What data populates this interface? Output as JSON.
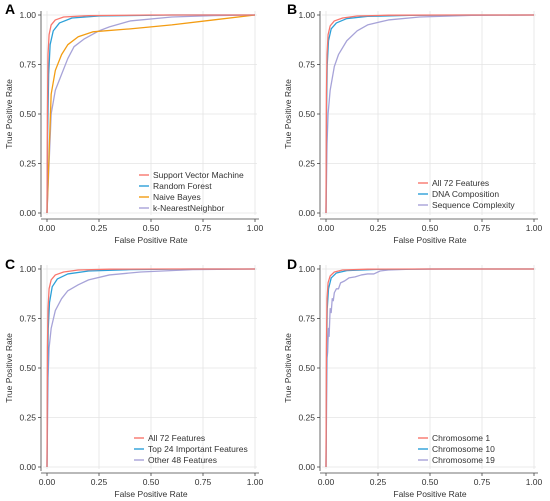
{
  "colors": {
    "red": "#f8766d",
    "blue": "#2ca0d8",
    "orange": "#f39c12",
    "purple": "#a7a3d8",
    "grid": "#e5e5e5",
    "axis": "#444444",
    "text": "#333333"
  },
  "chart_data": [
    {
      "panel_label": "A",
      "type": "line",
      "xlabel": "False Positive Rate",
      "ylabel": "True Positive Rate",
      "xlim": [
        0,
        1
      ],
      "ylim": [
        0,
        1
      ],
      "xticks": [
        "0.00",
        "0.25",
        "0.50",
        "0.75",
        "1.00"
      ],
      "yticks": [
        "0.00",
        "0.25",
        "0.50",
        "0.75",
        "1.00"
      ],
      "grid": true,
      "legend_position": "bottom-right",
      "series": [
        {
          "name": "Support Vector Machine",
          "color": "red",
          "points": [
            [
              0,
              0
            ],
            [
              0.002,
              0.5
            ],
            [
              0.005,
              0.8
            ],
            [
              0.01,
              0.9
            ],
            [
              0.02,
              0.95
            ],
            [
              0.04,
              0.975
            ],
            [
              0.08,
              0.99
            ],
            [
              0.2,
              0.997
            ],
            [
              0.5,
              1
            ],
            [
              1,
              1
            ]
          ]
        },
        {
          "name": "Random Forest",
          "color": "blue",
          "points": [
            [
              0,
              0
            ],
            [
              0.003,
              0.4
            ],
            [
              0.008,
              0.7
            ],
            [
              0.015,
              0.85
            ],
            [
              0.03,
              0.92
            ],
            [
              0.06,
              0.96
            ],
            [
              0.12,
              0.985
            ],
            [
              0.25,
              0.995
            ],
            [
              0.6,
              1
            ],
            [
              1,
              1
            ]
          ]
        },
        {
          "name": "Naive Bayes",
          "color": "orange",
          "points": [
            [
              0,
              0
            ],
            [
              0.02,
              0.6
            ],
            [
              0.04,
              0.72
            ],
            [
              0.07,
              0.8
            ],
            [
              0.1,
              0.85
            ],
            [
              0.15,
              0.89
            ],
            [
              0.22,
              0.915
            ],
            [
              0.4,
              0.93
            ],
            [
              0.6,
              0.95
            ],
            [
              0.8,
              0.975
            ],
            [
              1,
              1
            ]
          ]
        },
        {
          "name": "k-NearestNeighbor",
          "color": "purple",
          "points": [
            [
              0,
              0
            ],
            [
              0.02,
              0.5
            ],
            [
              0.04,
              0.62
            ],
            [
              0.07,
              0.7
            ],
            [
              0.1,
              0.78
            ],
            [
              0.13,
              0.84
            ],
            [
              0.18,
              0.88
            ],
            [
              0.25,
              0.92
            ],
            [
              0.3,
              0.94
            ],
            [
              0.4,
              0.97
            ],
            [
              0.6,
              0.99
            ],
            [
              0.8,
              0.997
            ],
            [
              1,
              1
            ]
          ]
        }
      ]
    },
    {
      "panel_label": "B",
      "type": "line",
      "xlabel": "False Positive Rate",
      "ylabel": "True Positive Rate",
      "xlim": [
        0,
        1
      ],
      "ylim": [
        0,
        1
      ],
      "xticks": [
        "0.00",
        "0.25",
        "0.50",
        "0.75",
        "1.00"
      ],
      "yticks": [
        "0.00",
        "0.25",
        "0.50",
        "0.75",
        "1.00"
      ],
      "grid": true,
      "legend_position": "bottom-right",
      "series": [
        {
          "name": "All 72 Features",
          "color": "red",
          "points": [
            [
              0,
              0
            ],
            [
              0.002,
              0.6
            ],
            [
              0.005,
              0.8
            ],
            [
              0.01,
              0.9
            ],
            [
              0.02,
              0.945
            ],
            [
              0.04,
              0.97
            ],
            [
              0.08,
              0.985
            ],
            [
              0.15,
              0.995
            ],
            [
              0.3,
              0.999
            ],
            [
              0.6,
              1
            ],
            [
              1,
              1
            ]
          ]
        },
        {
          "name": "DNA Composition",
          "color": "blue",
          "points": [
            [
              0,
              0
            ],
            [
              0.003,
              0.55
            ],
            [
              0.006,
              0.75
            ],
            [
              0.012,
              0.87
            ],
            [
              0.025,
              0.93
            ],
            [
              0.05,
              0.96
            ],
            [
              0.1,
              0.982
            ],
            [
              0.2,
              0.993
            ],
            [
              0.4,
              0.998
            ],
            [
              0.7,
              1
            ],
            [
              1,
              1
            ]
          ]
        },
        {
          "name": "Sequence Complexity",
          "color": "purple",
          "points": [
            [
              0,
              0
            ],
            [
              0.005,
              0.35
            ],
            [
              0.01,
              0.5
            ],
            [
              0.02,
              0.62
            ],
            [
              0.04,
              0.74
            ],
            [
              0.06,
              0.8
            ],
            [
              0.1,
              0.87
            ],
            [
              0.15,
              0.92
            ],
            [
              0.2,
              0.95
            ],
            [
              0.3,
              0.975
            ],
            [
              0.45,
              0.99
            ],
            [
              0.7,
              0.998
            ],
            [
              1,
              1
            ]
          ]
        }
      ]
    },
    {
      "panel_label": "C",
      "type": "line",
      "xlabel": "False Positive Rate",
      "ylabel": "True Positive Rate",
      "xlim": [
        0,
        1
      ],
      "ylim": [
        0,
        1
      ],
      "xticks": [
        "0.00",
        "0.25",
        "0.50",
        "0.75",
        "1.00"
      ],
      "yticks": [
        "0.00",
        "0.25",
        "0.50",
        "0.75",
        "1.00"
      ],
      "grid": true,
      "legend_position": "bottom-right",
      "series": [
        {
          "name": "All 72 Features",
          "color": "red",
          "points": [
            [
              0,
              0
            ],
            [
              0.002,
              0.6
            ],
            [
              0.005,
              0.8
            ],
            [
              0.01,
              0.9
            ],
            [
              0.02,
              0.945
            ],
            [
              0.04,
              0.97
            ],
            [
              0.08,
              0.985
            ],
            [
              0.15,
              0.995
            ],
            [
              0.3,
              0.999
            ],
            [
              0.6,
              1
            ],
            [
              1,
              1
            ]
          ]
        },
        {
          "name": "Top 24 Important Features",
          "color": "blue",
          "points": [
            [
              0,
              0
            ],
            [
              0.003,
              0.5
            ],
            [
              0.006,
              0.7
            ],
            [
              0.012,
              0.83
            ],
            [
              0.025,
              0.91
            ],
            [
              0.05,
              0.95
            ],
            [
              0.1,
              0.975
            ],
            [
              0.2,
              0.99
            ],
            [
              0.4,
              0.997
            ],
            [
              0.7,
              1
            ],
            [
              1,
              1
            ]
          ]
        },
        {
          "name": "Other 48 Features",
          "color": "purple",
          "points": [
            [
              0,
              0
            ],
            [
              0.005,
              0.45
            ],
            [
              0.01,
              0.6
            ],
            [
              0.02,
              0.7
            ],
            [
              0.04,
              0.79
            ],
            [
              0.07,
              0.85
            ],
            [
              0.1,
              0.89
            ],
            [
              0.15,
              0.92
            ],
            [
              0.2,
              0.945
            ],
            [
              0.3,
              0.97
            ],
            [
              0.45,
              0.985
            ],
            [
              0.7,
              0.997
            ],
            [
              1,
              1
            ]
          ]
        }
      ]
    },
    {
      "panel_label": "D",
      "type": "line",
      "xlabel": "False Positive Rate",
      "ylabel": "True Positive Rate",
      "xlim": [
        0,
        1
      ],
      "ylim": [
        0,
        1
      ],
      "xticks": [
        "0.00",
        "0.25",
        "0.50",
        "0.75",
        "1.00"
      ],
      "yticks": [
        "0.00",
        "0.25",
        "0.50",
        "0.75",
        "1.00"
      ],
      "grid": true,
      "legend_position": "bottom-right",
      "series": [
        {
          "name": "Chromosome 1",
          "color": "red",
          "points": [
            [
              0,
              0
            ],
            [
              0.002,
              0.6
            ],
            [
              0.005,
              0.85
            ],
            [
              0.01,
              0.93
            ],
            [
              0.02,
              0.965
            ],
            [
              0.04,
              0.985
            ],
            [
              0.08,
              0.995
            ],
            [
              0.2,
              0.999
            ],
            [
              0.5,
              1
            ],
            [
              1,
              1
            ]
          ]
        },
        {
          "name": "Chromosome 10",
          "color": "blue",
          "points": [
            [
              0,
              0
            ],
            [
              0.003,
              0.6
            ],
            [
              0.006,
              0.8
            ],
            [
              0.012,
              0.9
            ],
            [
              0.025,
              0.955
            ],
            [
              0.05,
              0.98
            ],
            [
              0.1,
              0.992
            ],
            [
              0.25,
              0.998
            ],
            [
              0.5,
              1
            ],
            [
              1,
              1
            ]
          ]
        },
        {
          "name": "Chromosome 19",
          "color": "purple",
          "points": [
            [
              0,
              0
            ],
            [
              0.005,
              0.55
            ],
            [
              0.008,
              0.58
            ],
            [
              0.012,
              0.7
            ],
            [
              0.015,
              0.66
            ],
            [
              0.02,
              0.8
            ],
            [
              0.025,
              0.78
            ],
            [
              0.03,
              0.85
            ],
            [
              0.035,
              0.84
            ],
            [
              0.04,
              0.88
            ],
            [
              0.05,
              0.9
            ],
            [
              0.06,
              0.9
            ],
            [
              0.07,
              0.93
            ],
            [
              0.09,
              0.94
            ],
            [
              0.11,
              0.955
            ],
            [
              0.14,
              0.96
            ],
            [
              0.17,
              0.97
            ],
            [
              0.2,
              0.975
            ],
            [
              0.23,
              0.975
            ],
            [
              0.26,
              0.99
            ],
            [
              0.3,
              0.995
            ],
            [
              0.4,
              0.999
            ],
            [
              0.6,
              1
            ],
            [
              1,
              1
            ]
          ]
        }
      ]
    }
  ]
}
